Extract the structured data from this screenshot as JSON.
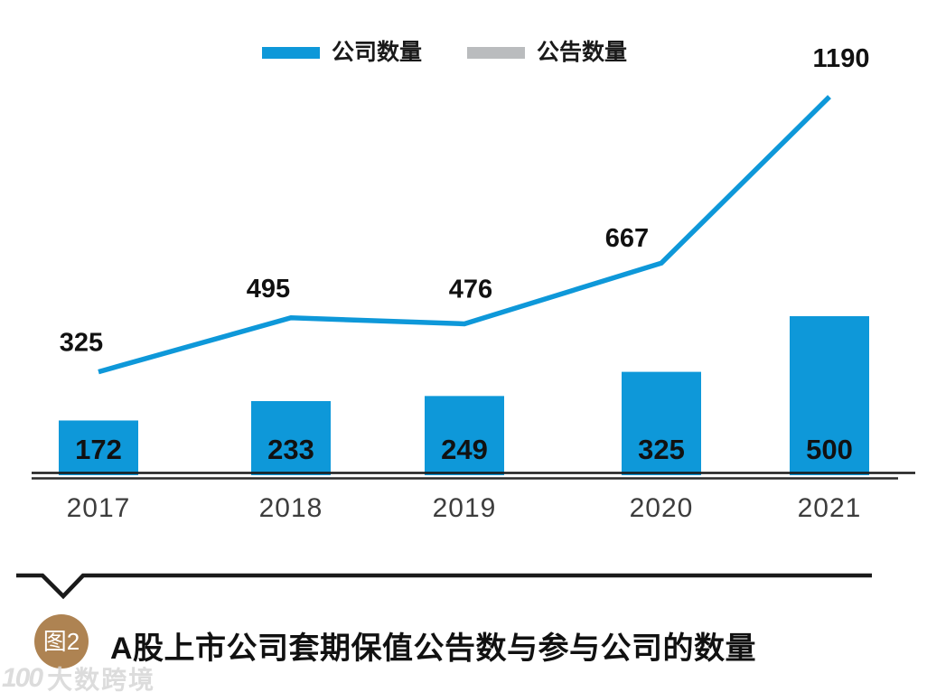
{
  "legend": {
    "items": [
      {
        "label": "公司数量",
        "color": "#0E98D9"
      },
      {
        "label": "公告数量",
        "color": "#BABCBE"
      }
    ]
  },
  "chart_data": {
    "type": "bar",
    "categories": [
      "2017",
      "2018",
      "2019",
      "2020",
      "2021"
    ],
    "series": [
      {
        "name": "公司数量",
        "type": "bar",
        "color": "#0E98D9",
        "values": [
          172,
          233,
          249,
          325,
          500
        ]
      },
      {
        "name": "公告数量",
        "type": "line",
        "color": "#0E98D9",
        "legend_swatch_color": "#BABCBE",
        "values": [
          325,
          495,
          476,
          667,
          1190
        ]
      }
    ],
    "title": "A股上市公司套期保值公告数与参与公司的数量",
    "xlabel": "",
    "ylabel": "",
    "ylim": [
      0,
      1300
    ],
    "grid": false,
    "legend_position": "top",
    "value_labels_shown": true,
    "axis_color": "#1a1a1a"
  },
  "footer": {
    "badge_label": "图2",
    "title": "A股上市公司套期保值公告数与参与公司的数量"
  },
  "watermark": {
    "logo_text": "100",
    "brand_text": "大数跨境"
  }
}
